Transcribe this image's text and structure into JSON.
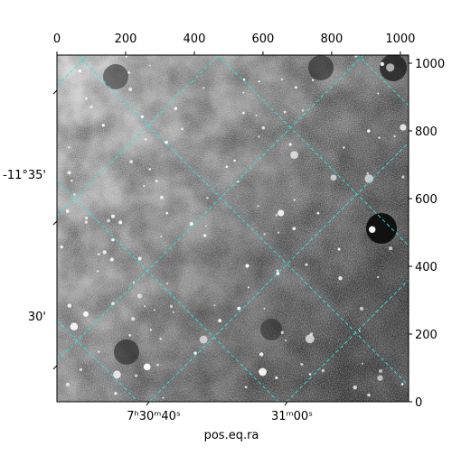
{
  "chart_data": {
    "type": "image",
    "xlabel": "pos.eq.ra",
    "xlim": [
      0,
      1024
    ],
    "ylim": [
      0,
      1024
    ],
    "xticks": [
      0,
      200,
      400,
      600,
      800,
      1000
    ],
    "yticks": [
      0,
      200,
      400,
      600,
      800,
      1000
    ],
    "ra_tick_labels": [
      "7ʰ30ᵐ40ˢ",
      "31ᵐ00ˢ"
    ],
    "dec_tick_labels": [
      "-11°35'",
      "30'"
    ]
  }
}
